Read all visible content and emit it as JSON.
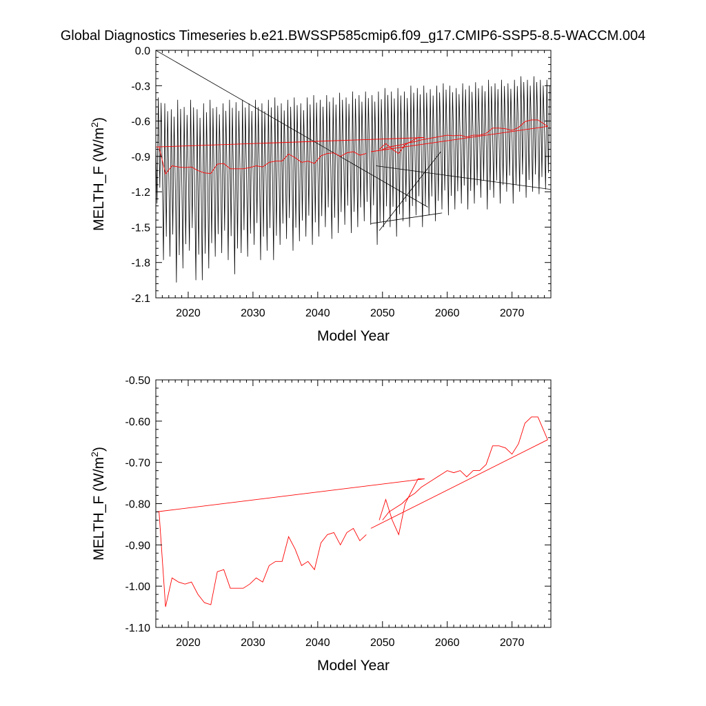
{
  "title": "Global Diagnostics Timeseries b.e21.BWSSP585cmip6.f09_g17.CMIP6-SSP5-8.5-WACCM.004",
  "chart_data": [
    {
      "type": "line",
      "xlabel": "Model Year",
      "ylabel_main": "MELTH_F (W/m",
      "ylabel_sup": "2",
      "ylabel_tail": ")",
      "xlim": [
        2015,
        2076
      ],
      "ylim": [
        -2.1,
        0.0
      ],
      "xticks": [
        2020,
        2030,
        2040,
        2050,
        2060,
        2070
      ],
      "xtick_labels": [
        "2020",
        "2030",
        "2040",
        "2050",
        "2060",
        "2070"
      ],
      "yticks": [
        0.0,
        -0.3,
        -0.6,
        -0.9,
        -1.2,
        -1.5,
        -1.8,
        -2.1
      ],
      "ytick_labels": [
        "0.0",
        "-0.3",
        "-0.6",
        "-0.9",
        "-1.2",
        "-1.5",
        "-1.8",
        "-2.1"
      ],
      "series": [
        {
          "kind": "monthly",
          "color": "#000000",
          "description_values": "monthly oscillation between seasonal troughs (min) and peaks (max)",
          "years": [
            2015,
            2016,
            2017,
            2018,
            2019,
            2020,
            2021,
            2022,
            2023,
            2024,
            2025,
            2026,
            2027,
            2028,
            2029,
            2030,
            2031,
            2032,
            2033,
            2034,
            2035,
            2036,
            2037,
            2038,
            2039,
            2040,
            2041,
            2042,
            2043,
            2044,
            2045,
            2046,
            2047,
            2048,
            2049,
            2050,
            2051,
            2052,
            2053,
            2054,
            2055,
            2056,
            2057,
            2058,
            2059,
            2060,
            2061,
            2062,
            2063,
            2064,
            2065,
            2066,
            2067,
            2068,
            2069,
            2070,
            2071,
            2072,
            2073,
            2074,
            2075
          ],
          "annual_min": [
            -1.3,
            -1.78,
            -1.75,
            -1.97,
            -1.85,
            -1.7,
            -1.95,
            -1.95,
            -1.85,
            -1.75,
            -1.72,
            -1.78,
            -1.9,
            -1.72,
            -1.75,
            -1.65,
            -1.78,
            -1.7,
            -1.78,
            -1.65,
            -1.6,
            -1.7,
            -1.62,
            -1.58,
            -1.65,
            -1.58,
            -1.5,
            -1.6,
            -1.55,
            -1.48,
            -1.55,
            -1.5,
            -1.45,
            -1.48,
            -1.65,
            -1.5,
            -1.5,
            -1.58,
            -1.45,
            -1.5,
            -1.4,
            -1.5,
            -1.4,
            -1.45,
            -1.35,
            -1.4,
            -1.35,
            -1.3,
            -1.35,
            -1.3,
            -1.25,
            -1.35,
            -1.25,
            -1.3,
            -1.2,
            -1.3,
            -1.2,
            -1.25,
            -1.2,
            -1.22,
            -1.18
          ],
          "annual_max": [
            -0.4,
            -0.45,
            -0.5,
            -0.42,
            -0.48,
            -0.42,
            -0.5,
            -0.45,
            -0.42,
            -0.48,
            -0.45,
            -0.42,
            -0.44,
            -0.42,
            -0.45,
            -0.42,
            -0.45,
            -0.42,
            -0.4,
            -0.45,
            -0.42,
            -0.4,
            -0.45,
            -0.4,
            -0.38,
            -0.42,
            -0.38,
            -0.4,
            -0.36,
            -0.4,
            -0.35,
            -0.38,
            -0.35,
            -0.38,
            -0.35,
            -0.32,
            -0.35,
            -0.32,
            -0.35,
            -0.3,
            -0.32,
            -0.3,
            -0.33,
            -0.3,
            -0.28,
            -0.3,
            -0.32,
            -0.28,
            -0.3,
            -0.27,
            -0.3,
            -0.25,
            -0.28,
            -0.25,
            -0.28,
            -0.25,
            -0.22,
            -0.25,
            -0.22,
            -0.25,
            -0.25
          ],
          "wrap_segments": [
            [
              [
                2015.0,
                0.0
              ],
              [
                2057.0,
                -1.33
              ]
            ],
            [
              [
                2048.2,
                -1.47
              ],
              [
                2059.2,
                -1.38
              ]
            ],
            [
              [
                2049.5,
                -1.53
              ],
              [
                2059.0,
                -0.86
              ]
            ],
            [
              [
                2049.0,
                -0.98
              ],
              [
                2076.0,
                -1.18
              ]
            ]
          ]
        },
        {
          "kind": "annual",
          "color": "#ff0000",
          "x": [
            2015.5,
            2016.5,
            2017.5,
            2018.5,
            2019.5,
            2020.5,
            2021.5,
            2022.5,
            2023.5,
            2024.5,
            2025.5,
            2026.5,
            2027.5,
            2028.5,
            2029.5,
            2030.5,
            2031.5,
            2032.5,
            2033.5,
            2034.5,
            2035.5,
            2036.5,
            2037.5,
            2038.5,
            2039.5,
            2040.5,
            2041.5,
            2042.5,
            2043.5,
            2044.5,
            2045.5,
            2046.5,
            2047.5
          ],
          "values": [
            -0.82,
            -1.05,
            -0.98,
            -0.99,
            -0.995,
            -0.99,
            -1.02,
            -1.04,
            -1.045,
            -0.965,
            -0.96,
            -1.005,
            -1.005,
            -1.005,
            -0.995,
            -0.98,
            -0.99,
            -0.95,
            -0.94,
            -0.94,
            -0.88,
            -0.91,
            -0.95,
            -0.94,
            -0.96,
            -0.895,
            -0.875,
            -0.87,
            -0.9,
            -0.87,
            -0.86,
            -0.89,
            -0.875
          ]
        },
        {
          "kind": "annual-wrap",
          "color": "#ff0000",
          "x": [
            2015.0,
            2056.5
          ],
          "values": [
            -0.82,
            -0.74
          ]
        },
        {
          "kind": "annual-segment",
          "color": "#ff0000",
          "x": [
            2049.5,
            2050.5,
            2051.5,
            2052.5,
            2053.5,
            2054.5,
            2055.5,
            2056.5
          ],
          "values": [
            -0.84,
            -0.79,
            -0.84,
            -0.875,
            -0.8,
            -0.77,
            -0.74,
            -0.74
          ]
        },
        {
          "kind": "annual-segment",
          "color": "#ff0000",
          "x": [
            2050.0,
            2051.0,
            2052.0,
            2053.0,
            2054.0,
            2055.0,
            2056.0,
            2057.0,
            2058.0,
            2059.0,
            2060.0,
            2061.0,
            2062.0,
            2063.0,
            2064.0,
            2065.0,
            2066.0,
            2067.0,
            2068.0,
            2069.0,
            2070.0,
            2071.0,
            2072.0,
            2073.0,
            2074.0,
            2075.5
          ],
          "values": [
            -0.84,
            -0.82,
            -0.81,
            -0.8,
            -0.785,
            -0.775,
            -0.76,
            -0.75,
            -0.74,
            -0.73,
            -0.72,
            -0.725,
            -0.72,
            -0.735,
            -0.72,
            -0.72,
            -0.705,
            -0.66,
            -0.66,
            -0.665,
            -0.68,
            -0.655,
            -0.605,
            -0.59,
            -0.59,
            -0.645
          ]
        },
        {
          "kind": "annual-wrap",
          "color": "#ff0000",
          "x": [
            2048.2,
            2075.5
          ],
          "values": [
            -0.86,
            -0.645
          ]
        }
      ]
    },
    {
      "type": "line",
      "xlabel": "Model Year",
      "ylabel_main": "MELTH_F (W/m",
      "ylabel_sup": "2",
      "ylabel_tail": ")",
      "xlim": [
        2015,
        2076
      ],
      "ylim": [
        -1.1,
        -0.5
      ],
      "xticks": [
        2020,
        2030,
        2040,
        2050,
        2060,
        2070
      ],
      "xtick_labels": [
        "2020",
        "2030",
        "2040",
        "2050",
        "2060",
        "2070"
      ],
      "yticks": [
        -0.5,
        -0.6,
        -0.7,
        -0.8,
        -0.9,
        -1.0,
        -1.1
      ],
      "ytick_labels": [
        "-0.50",
        "-0.60",
        "-0.70",
        "-0.80",
        "-0.90",
        "-1.00",
        "-1.10"
      ],
      "series": "same-as-annual"
    }
  ]
}
